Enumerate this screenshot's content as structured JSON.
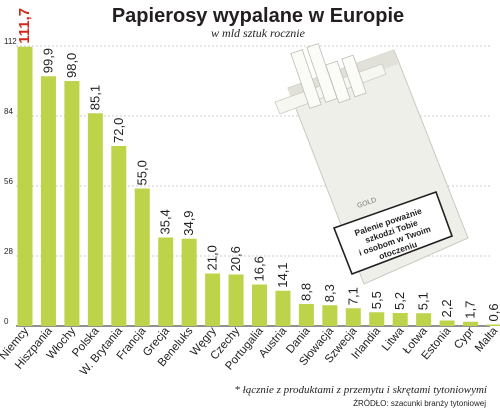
{
  "chart_data": {
    "type": "bar",
    "title": "Papierosy wypalane w Europie",
    "subtitle": "w mld sztuk rocznie",
    "xlabel": "",
    "ylabel": "",
    "ylim": [
      0,
      112
    ],
    "yticks": [
      0,
      28,
      56,
      84,
      112
    ],
    "grid": true,
    "categories": [
      "Niemcy",
      "Hiszpania",
      "Włochy",
      "Polska",
      "W. Brytania",
      "Francja",
      "Grecja",
      "Beneluks",
      "Węgry",
      "Czechy",
      "Portugalia",
      "Austria",
      "Dania",
      "Słowacja",
      "Szwecja",
      "Irlandia",
      "Litwa",
      "Łotwa",
      "Estonia",
      "Cypr",
      "Malta"
    ],
    "value_labels": [
      "111,7",
      "99,9",
      "98,0",
      "85,1",
      "72,0",
      "55,0",
      "35,4",
      "34,9",
      "21,0",
      "20,6",
      "16,6",
      "14,1",
      "8,8",
      "8,3",
      "7,1",
      "5,5",
      "5,2",
      "5,1",
      "2,2",
      "1,7",
      "0,6"
    ],
    "values": [
      111.7,
      99.9,
      98.0,
      85.1,
      72.0,
      55.0,
      35.4,
      34.9,
      21.0,
      20.6,
      16.6,
      14.1,
      8.8,
      8.3,
      7.1,
      5.5,
      5.2,
      5.1,
      2.2,
      1.7,
      0.6
    ],
    "highlight_label_color": "#d4261c",
    "bar_color": "#bcd34a",
    "footnote": "* łącznie z produktami z przemytu i skrętami tytoniowymi",
    "source": "ŹRÓDŁO: szacunki branży tytoniowej"
  },
  "illustration": {
    "pack_brand": "GOLD",
    "warning_text": [
      "Palenie poważnie",
      "szkodzi Tobie",
      "i osobom w Twoim",
      "otoczeniu"
    ]
  }
}
